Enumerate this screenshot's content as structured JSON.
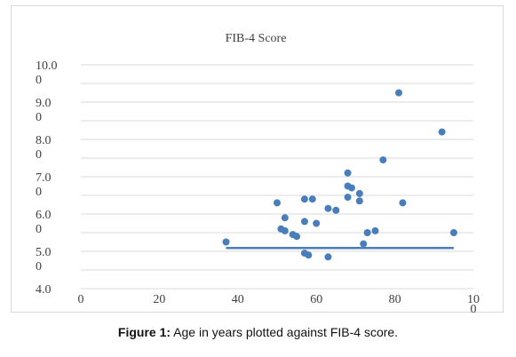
{
  "chart_data": {
    "type": "scatter",
    "title": "FIB-4 Score",
    "xlabel": "",
    "ylabel": "",
    "xlim": [
      0,
      100
    ],
    "ylim": [
      4.0,
      10.0
    ],
    "x_ticks": [
      {
        "value": 0,
        "l1": "0",
        "l2": ""
      },
      {
        "value": 20,
        "l1": "20",
        "l2": ""
      },
      {
        "value": 40,
        "l1": "40",
        "l2": ""
      },
      {
        "value": 60,
        "l1": "60",
        "l2": ""
      },
      {
        "value": 80,
        "l1": "80",
        "l2": ""
      },
      {
        "value": 100,
        "l1": "10",
        "l2": "0"
      }
    ],
    "y_ticks": [
      {
        "value": 4.0,
        "l1": "4.0",
        "l2": ""
      },
      {
        "value": 5.0,
        "l1": "5.0",
        "l2": "0"
      },
      {
        "value": 6.0,
        "l1": "6.0",
        "l2": "0"
      },
      {
        "value": 7.0,
        "l1": "7.0",
        "l2": "0"
      },
      {
        "value": 8.0,
        "l1": "8.0",
        "l2": "0"
      },
      {
        "value": 9.0,
        "l1": "9.0",
        "l2": "0"
      },
      {
        "value": 10.0,
        "l1": "10.0",
        "l2": "0"
      }
    ],
    "grid": "horizontal",
    "marker_color": "#4a7ebb",
    "trendline": {
      "x": [
        37,
        95
      ],
      "y": [
        5.09,
        5.09
      ],
      "color": "#4a7ebb"
    },
    "series": [
      {
        "points": [
          [
            37,
            5.25
          ],
          [
            50,
            6.3
          ],
          [
            51,
            5.6
          ],
          [
            52,
            5.55
          ],
          [
            52,
            5.9
          ],
          [
            54,
            5.45
          ],
          [
            55,
            5.4
          ],
          [
            57,
            4.95
          ],
          [
            57,
            5.8
          ],
          [
            57,
            6.4
          ],
          [
            58,
            4.9
          ],
          [
            59,
            6.4
          ],
          [
            60,
            5.75
          ],
          [
            63,
            4.85
          ],
          [
            63,
            6.15
          ],
          [
            65,
            6.1
          ],
          [
            68,
            6.45
          ],
          [
            68,
            7.1
          ],
          [
            68,
            6.75
          ],
          [
            69,
            6.7
          ],
          [
            71,
            6.55
          ],
          [
            71,
            6.35
          ],
          [
            72,
            5.2
          ],
          [
            73,
            5.5
          ],
          [
            75,
            5.55
          ],
          [
            77,
            7.45
          ],
          [
            81,
            9.25
          ],
          [
            82,
            6.3
          ],
          [
            92,
            8.2
          ],
          [
            95,
            5.5
          ]
        ]
      }
    ]
  },
  "caption": {
    "label": "Figure 1:",
    "text": " Age in years plotted against FIB-4 score."
  }
}
